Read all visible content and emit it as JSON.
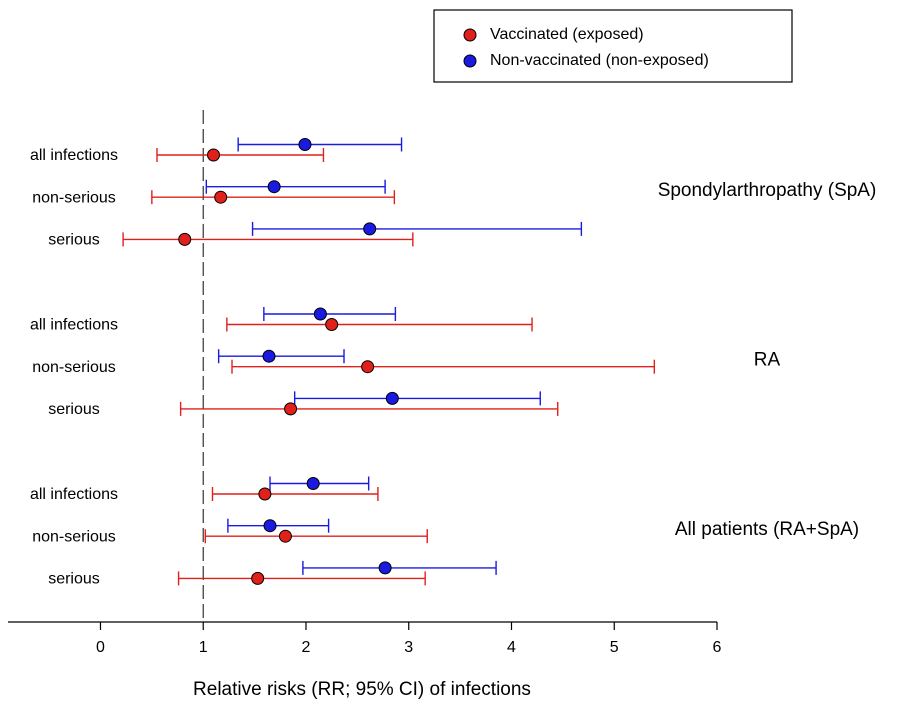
{
  "chart_data": {
    "type": "forest",
    "x_label": "Relative risks (RR; 95% CI) of infections",
    "xlim": [
      -0.9,
      6
    ],
    "xticks": [
      0,
      1,
      2,
      3,
      4,
      5,
      6
    ],
    "reference": 1,
    "groups": [
      {
        "name": "Spondylarthropathy (SpA)",
        "rows": [
          "all infections",
          "non-serious",
          "serious"
        ]
      },
      {
        "name": "RA",
        "rows": [
          "all infections",
          "non-serious",
          "serious"
        ]
      },
      {
        "name": "All patients (RA+SpA)",
        "rows": [
          "all infections",
          "non-serious",
          "serious"
        ]
      }
    ],
    "series": [
      {
        "name": "Vaccinated (exposed)",
        "color": "#e0201a",
        "values": [
          1.1,
          1.17,
          0.82,
          2.25,
          2.6,
          1.85,
          1.6,
          1.8,
          1.53
        ],
        "lower": [
          0.55,
          0.5,
          0.22,
          1.23,
          1.28,
          0.78,
          1.09,
          1.02,
          0.76
        ],
        "upper": [
          2.17,
          2.86,
          3.04,
          4.2,
          5.39,
          4.45,
          2.7,
          3.18,
          3.16
        ]
      },
      {
        "name": "Non-vaccinated (non-exposed)",
        "color": "#1a1ae0",
        "values": [
          1.99,
          1.69,
          2.62,
          2.14,
          1.64,
          2.84,
          2.07,
          1.65,
          2.77
        ],
        "lower": [
          1.34,
          1.03,
          1.48,
          1.59,
          1.15,
          1.89,
          1.65,
          1.24,
          1.97
        ],
        "upper": [
          2.93,
          2.77,
          4.68,
          2.87,
          2.37,
          4.28,
          2.61,
          2.22,
          3.85
        ]
      }
    ]
  }
}
